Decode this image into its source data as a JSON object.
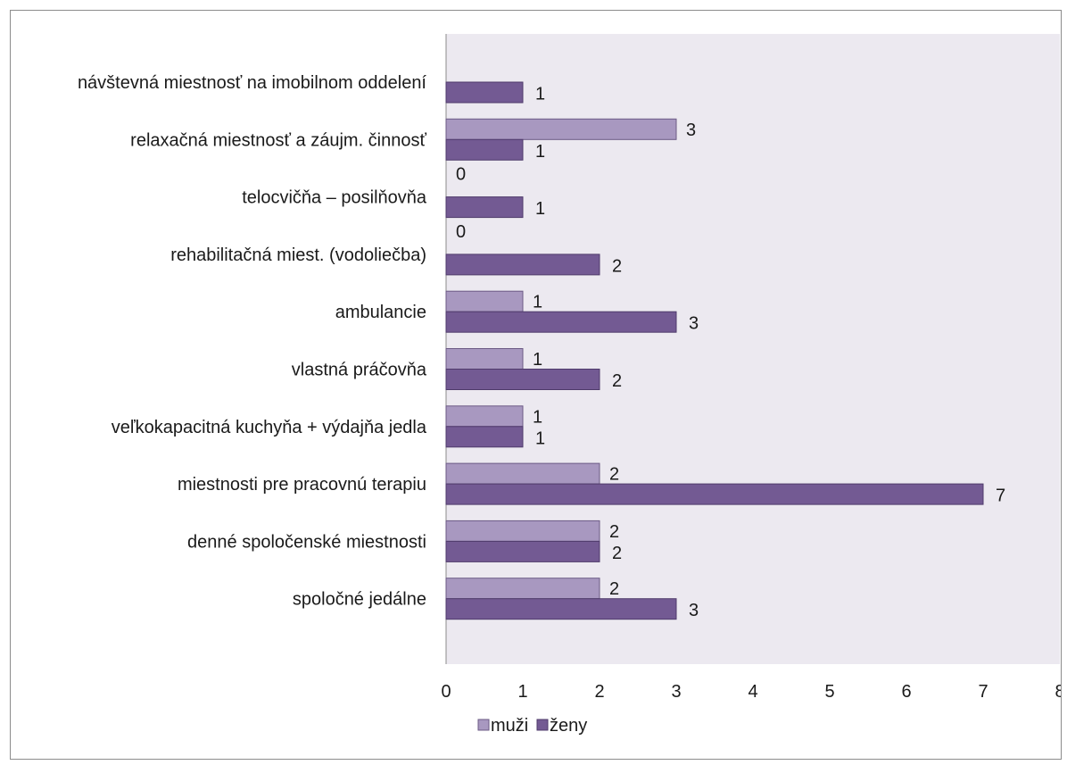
{
  "chart_data": {
    "type": "bar",
    "orientation": "horizontal",
    "title": "",
    "xlabel": "",
    "ylabel": "",
    "categories": [
      "návštevná miestnosť na imobilnom oddelení",
      "relaxačná miestnosť a záujm. činnosť",
      "telocvičňa – posilňovňa",
      "rehabilitačná miest. (vodoliečba)",
      "ambulancie",
      "vlastná práčovňa",
      "veľkokapacitná kuchyňa + výdajňa jedla",
      "miestnosti pre pracovnú terapiu",
      "denné spoločenské miestnosti",
      "spoločné jedálne"
    ],
    "series": [
      {
        "name": "muži",
        "values": [
          null,
          3,
          0,
          0,
          1,
          1,
          1,
          2,
          2,
          2
        ],
        "color": "#a898c0"
      },
      {
        "name": "ženy",
        "values": [
          1,
          1,
          1,
          2,
          3,
          2,
          1,
          7,
          2,
          3
        ],
        "color": "#735a93"
      }
    ],
    "xlim": [
      0,
      8
    ],
    "xticks": [
      0,
      1,
      2,
      3,
      4,
      5,
      6,
      7,
      8
    ],
    "grid": false,
    "plot_background": "#ece9f0",
    "legend": "bottom"
  }
}
